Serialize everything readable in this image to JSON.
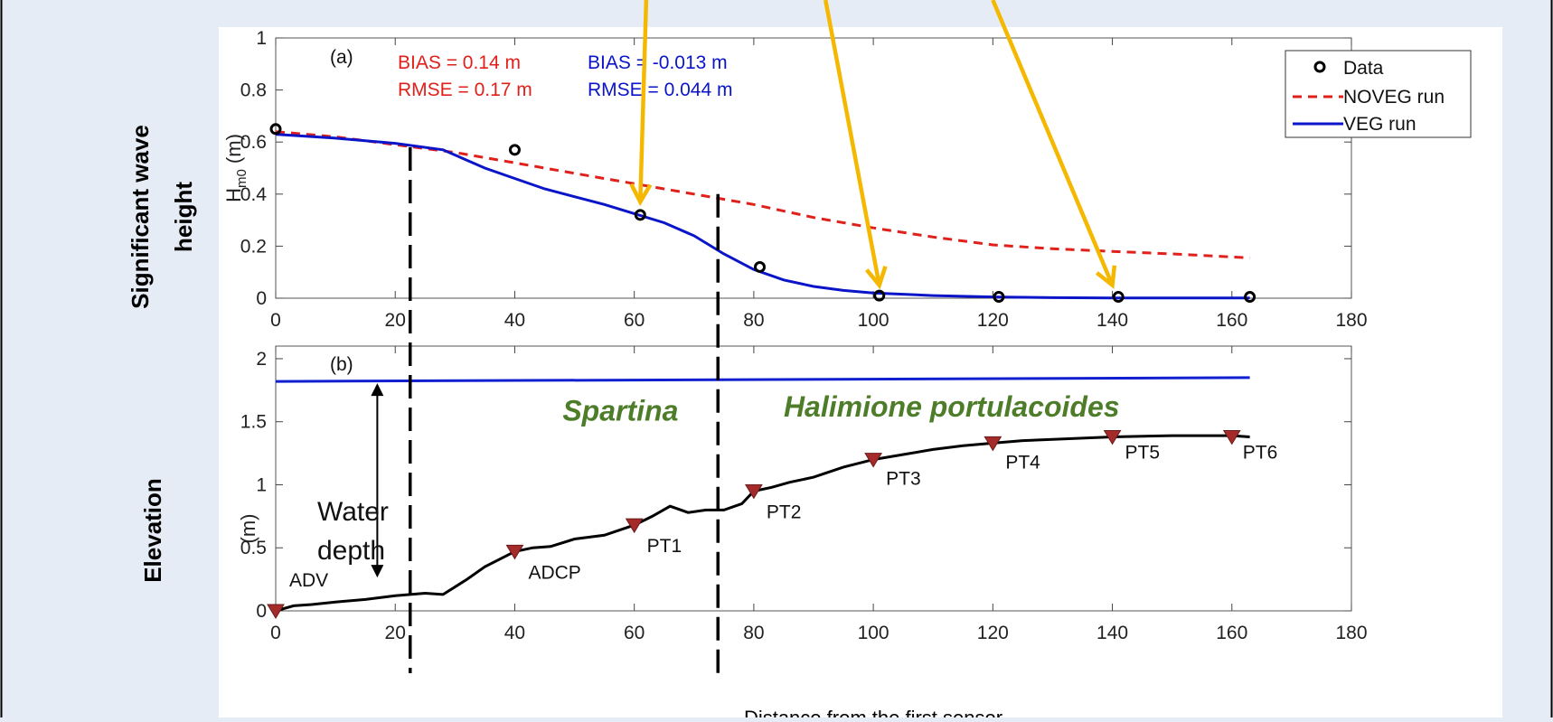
{
  "colors": {
    "background": "#e6ecf5",
    "noveg": "#e0201b",
    "veg": "#0a14c8",
    "water": "#1020d0",
    "sensor_marker": "#a52a2a",
    "data_marker": "#000000",
    "zone_label": "#4e7d2a",
    "arrow": "#f5b800"
  },
  "side_labels": {
    "top_line1": "Significant wave",
    "top_line2": "height",
    "bottom": "Elevation"
  },
  "bottom_text": "Distance from the first sensor",
  "chart_data": [
    {
      "type": "line",
      "panel_label": "(a)",
      "ylabel_main": "H",
      "ylabel_sub": "m0",
      "ylabel_unit": " (m)",
      "xlim": [
        0,
        180
      ],
      "ylim": [
        0,
        1
      ],
      "x_ticks": [
        0,
        20,
        40,
        60,
        80,
        100,
        120,
        140,
        160,
        180
      ],
      "y_ticks": [
        0,
        0.2,
        0.4,
        0.6,
        0.8,
        1
      ],
      "y_tick_labels": [
        "0",
        "0.2",
        "0.4",
        "0.6",
        "0.8",
        "1"
      ],
      "grid": false,
      "legend_position": "top-right",
      "stats": [
        {
          "text": "BIAS = 0.14 m",
          "series": "NOVEG run"
        },
        {
          "text": "RMSE = 0.17 m",
          "series": "NOVEG run"
        },
        {
          "text": "BIAS = -0.013 m",
          "series": "VEG run"
        },
        {
          "text": "RMSE = 0.044 m",
          "series": "VEG run"
        }
      ],
      "legend": [
        "Data",
        "NOVEG run",
        "VEG run"
      ],
      "series": [
        {
          "name": "Data",
          "style": "markers-circle",
          "x": [
            0,
            40,
            61,
            81,
            101,
            121,
            141,
            163
          ],
          "y": [
            0.65,
            0.57,
            0.32,
            0.12,
            0.01,
            0.005,
            0.005,
            0.005
          ]
        },
        {
          "name": "NOVEG run",
          "style": "dashed",
          "x": [
            0,
            10,
            20,
            30,
            40,
            50,
            60,
            70,
            80,
            90,
            100,
            110,
            120,
            130,
            140,
            150,
            163
          ],
          "y": [
            0.64,
            0.62,
            0.59,
            0.56,
            0.52,
            0.48,
            0.44,
            0.4,
            0.36,
            0.31,
            0.27,
            0.235,
            0.205,
            0.19,
            0.18,
            0.17,
            0.155
          ]
        },
        {
          "name": "VEG run",
          "style": "solid",
          "x": [
            0,
            10,
            20,
            28,
            35,
            40,
            45,
            50,
            55,
            60,
            65,
            70,
            75,
            80,
            85,
            90,
            95,
            100,
            110,
            120,
            130,
            140,
            150,
            163
          ],
          "y": [
            0.63,
            0.615,
            0.595,
            0.57,
            0.5,
            0.46,
            0.42,
            0.39,
            0.36,
            0.325,
            0.29,
            0.24,
            0.17,
            0.11,
            0.07,
            0.045,
            0.03,
            0.02,
            0.01,
            0.005,
            0.002,
            0.001,
            0.001,
            0.001
          ]
        }
      ]
    },
    {
      "type": "line",
      "panel_label": "(b)",
      "ylabel": "(m)",
      "xlim": [
        0,
        180
      ],
      "ylim": [
        0,
        2.1
      ],
      "x_ticks": [
        0,
        20,
        40,
        60,
        80,
        100,
        120,
        140,
        160,
        180
      ],
      "y_ticks": [
        0,
        0.5,
        1,
        1.5,
        2
      ],
      "y_tick_labels": [
        "0",
        "0.5",
        "1",
        "1.5",
        "2"
      ],
      "grid": false,
      "series": [
        {
          "name": "water",
          "style": "solid",
          "x": [
            0,
            163
          ],
          "y": [
            1.82,
            1.85
          ]
        },
        {
          "name": "bed",
          "style": "solid",
          "x": [
            0,
            3,
            6,
            10,
            15,
            20,
            25,
            28,
            32,
            35,
            40,
            43,
            46,
            50,
            55,
            60,
            63,
            66,
            69,
            72,
            75,
            78,
            80,
            83,
            86,
            90,
            95,
            100,
            105,
            110,
            115,
            120,
            125,
            130,
            135,
            140,
            150,
            160,
            163
          ],
          "y": [
            0,
            0.04,
            0.05,
            0.07,
            0.09,
            0.12,
            0.14,
            0.13,
            0.25,
            0.35,
            0.47,
            0.5,
            0.51,
            0.57,
            0.6,
            0.68,
            0.75,
            0.83,
            0.78,
            0.8,
            0.8,
            0.85,
            0.95,
            0.98,
            1.02,
            1.06,
            1.14,
            1.2,
            1.24,
            1.28,
            1.31,
            1.33,
            1.35,
            1.36,
            1.37,
            1.38,
            1.39,
            1.39,
            1.38
          ]
        }
      ],
      "sensors": [
        {
          "label": "ADV",
          "x": 0,
          "y": 0.0
        },
        {
          "label": "ADCP",
          "x": 40,
          "y": 0.47
        },
        {
          "label": "PT1",
          "x": 60,
          "y": 0.68
        },
        {
          "label": "PT2",
          "x": 80,
          "y": 0.95
        },
        {
          "label": "PT3",
          "x": 100,
          "y": 1.2
        },
        {
          "label": "PT4",
          "x": 120,
          "y": 1.33
        },
        {
          "label": "PT5",
          "x": 140,
          "y": 1.38
        },
        {
          "label": "PT6",
          "x": 160,
          "y": 1.38
        }
      ],
      "zones": [
        {
          "label": "Spartina",
          "x": 48,
          "y": 1.51
        },
        {
          "label": "Halimione portulacoides",
          "x": 85,
          "y": 1.54
        }
      ],
      "water_depth": {
        "label_line1": "Water",
        "label_line2": "depth",
        "x": 17,
        "y_bottom": 0.25,
        "y_top": 1.82
      }
    }
  ],
  "dividers": [
    {
      "x": 22.5,
      "y_top_a": 0.58
    },
    {
      "x": 74,
      "y_top_a": 0.4
    }
  ],
  "arrows": [
    {
      "from_a": [
        62,
        1.0
      ],
      "to_a": [
        61,
        0.37
      ]
    },
    {
      "from_a": [
        92,
        1.0
      ],
      "to_a": [
        101,
        0.05
      ]
    },
    {
      "from_a": [
        120,
        1.0
      ],
      "to_a": [
        140,
        0.05
      ]
    }
  ]
}
